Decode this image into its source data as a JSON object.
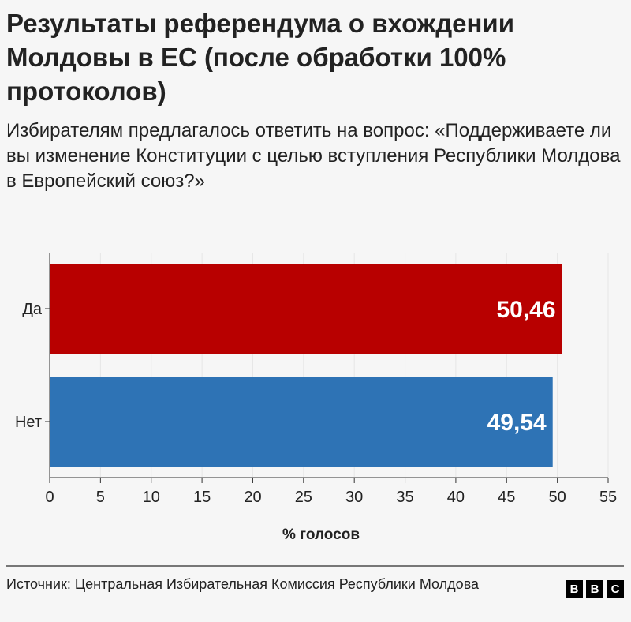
{
  "title": "Результаты референдума о вхождении Молдовы в ЕС (после обработки 100% протоколов)",
  "subtitle": "Избирателям предлагалось ответить на вопрос: «Поддерживаете ли вы изменение Конституции с целью вступления Республики Молдова в Европейский союз?»",
  "source": "Источник: Центральная Избирательная Комиссия Республики Молдова",
  "logo": "BBC",
  "chart_data": {
    "type": "bar",
    "orientation": "horizontal",
    "categories": [
      "Да",
      "Нет"
    ],
    "values": [
      50.46,
      49.54
    ],
    "value_labels": [
      "50,46",
      "49,54"
    ],
    "colors": [
      "#b80000",
      "#2e73b5"
    ],
    "xlabel": "% голосов",
    "xlim": [
      0,
      55
    ],
    "xticks": [
      "0",
      "5",
      "10",
      "15",
      "20",
      "25",
      "30",
      "35",
      "40",
      "45",
      "50",
      "55"
    ],
    "grid": true
  }
}
